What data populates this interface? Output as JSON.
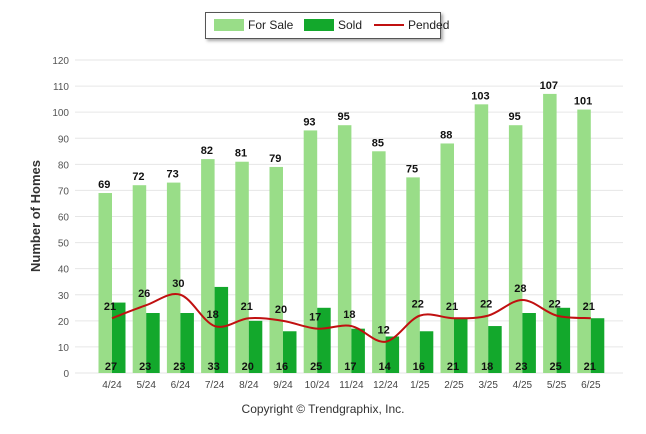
{
  "chart_data": {
    "type": "bar",
    "title": "",
    "xlabel": "",
    "ylabel": "Number of Homes",
    "ylim": [
      0,
      120
    ],
    "yticks": [
      0,
      10,
      20,
      30,
      40,
      50,
      60,
      70,
      80,
      90,
      100,
      110,
      120
    ],
    "grid": true,
    "legend_placement": "top-center",
    "categories": [
      "4/24",
      "5/24",
      "6/24",
      "7/24",
      "8/24",
      "9/24",
      "10/24",
      "11/24",
      "12/24",
      "1/25",
      "2/25",
      "3/25",
      "4/25",
      "5/25",
      "6/25"
    ],
    "series": [
      {
        "name": "For Sale",
        "kind": "bar",
        "color": "#99dd88",
        "values": [
          69,
          72,
          73,
          82,
          81,
          79,
          93,
          95,
          85,
          75,
          88,
          103,
          95,
          107,
          101
        ]
      },
      {
        "name": "Sold",
        "kind": "bar",
        "color": "#13a82c",
        "values": [
          27,
          23,
          23,
          33,
          20,
          16,
          25,
          17,
          14,
          16,
          21,
          18,
          23,
          25,
          21
        ]
      },
      {
        "name": "Pended",
        "kind": "line",
        "color": "#c01010",
        "values": [
          21,
          26,
          30,
          18,
          21,
          20,
          17,
          18,
          12,
          22,
          21,
          22,
          28,
          22,
          21
        ]
      }
    ]
  },
  "legend": {
    "for_sale": "For Sale",
    "sold": "Sold",
    "pended": "Pended"
  },
  "footer": {
    "copyright": "Copyright © Trendgraphix, Inc."
  }
}
